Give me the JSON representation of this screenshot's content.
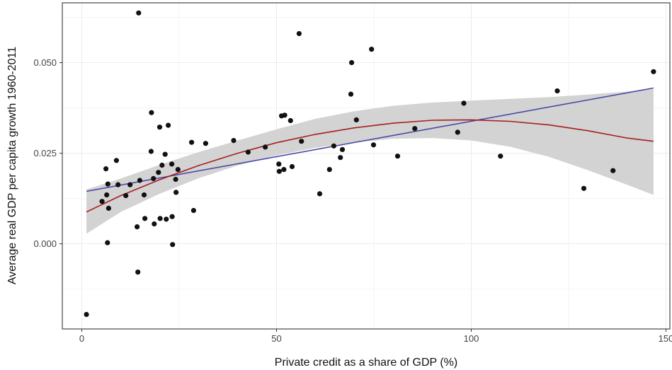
{
  "chart_data": {
    "type": "scatter",
    "xlabel": "Private credit as a share of GDP (%)",
    "ylabel": "Average real GDP per capita growth 1960-2011",
    "xlim": [
      -5,
      151
    ],
    "ylim": [
      -0.0235,
      0.0665
    ],
    "x_ticks": [
      0,
      50,
      100,
      150
    ],
    "x_tick_labels": [
      "0",
      "50",
      "100",
      "150"
    ],
    "y_ticks": [
      0.0,
      0.025,
      0.05
    ],
    "y_tick_labels": [
      "0.000",
      "0.025",
      "0.050"
    ],
    "grid": true,
    "points": [
      {
        "x": 1.2,
        "y": -0.0195
      },
      {
        "x": 5.2,
        "y": 0.0117
      },
      {
        "x": 6.2,
        "y": 0.0207
      },
      {
        "x": 6.4,
        "y": 0.0135
      },
      {
        "x": 6.6,
        "y": 0.0003
      },
      {
        "x": 6.7,
        "y": 0.0165
      },
      {
        "x": 6.9,
        "y": 0.0098
      },
      {
        "x": 8.9,
        "y": 0.023
      },
      {
        "x": 9.3,
        "y": 0.0163
      },
      {
        "x": 11.3,
        "y": 0.0133
      },
      {
        "x": 12.4,
        "y": 0.0163
      },
      {
        "x": 14.2,
        "y": 0.0047
      },
      {
        "x": 14.4,
        "y": -0.0078
      },
      {
        "x": 14.6,
        "y": 0.0637
      },
      {
        "x": 14.9,
        "y": 0.0175
      },
      {
        "x": 16.0,
        "y": 0.0135
      },
      {
        "x": 16.2,
        "y": 0.007
      },
      {
        "x": 17.8,
        "y": 0.0255
      },
      {
        "x": 17.9,
        "y": 0.0362
      },
      {
        "x": 18.4,
        "y": 0.018
      },
      {
        "x": 18.6,
        "y": 0.0055
      },
      {
        "x": 19.7,
        "y": 0.0197
      },
      {
        "x": 20.0,
        "y": 0.0322
      },
      {
        "x": 20.1,
        "y": 0.007
      },
      {
        "x": 20.6,
        "y": 0.0217
      },
      {
        "x": 21.4,
        "y": 0.0247
      },
      {
        "x": 21.7,
        "y": 0.0068
      },
      {
        "x": 22.2,
        "y": 0.0327
      },
      {
        "x": 23.1,
        "y": 0.022
      },
      {
        "x": 23.2,
        "y": 0.0075
      },
      {
        "x": 23.3,
        "y": -0.0002
      },
      {
        "x": 24.1,
        "y": 0.0178
      },
      {
        "x": 24.2,
        "y": 0.0142
      },
      {
        "x": 24.7,
        "y": 0.0205
      },
      {
        "x": 28.2,
        "y": 0.028
      },
      {
        "x": 28.7,
        "y": 0.0092
      },
      {
        "x": 31.8,
        "y": 0.0277
      },
      {
        "x": 39.0,
        "y": 0.0285
      },
      {
        "x": 42.7,
        "y": 0.0253
      },
      {
        "x": 47.1,
        "y": 0.0267
      },
      {
        "x": 50.6,
        "y": 0.022
      },
      {
        "x": 50.7,
        "y": 0.02
      },
      {
        "x": 51.3,
        "y": 0.0353
      },
      {
        "x": 51.9,
        "y": 0.0205
      },
      {
        "x": 52.1,
        "y": 0.0355
      },
      {
        "x": 53.6,
        "y": 0.034
      },
      {
        "x": 54.0,
        "y": 0.0213
      },
      {
        "x": 55.8,
        "y": 0.058
      },
      {
        "x": 56.4,
        "y": 0.0283
      },
      {
        "x": 61.1,
        "y": 0.0138
      },
      {
        "x": 63.6,
        "y": 0.0205
      },
      {
        "x": 64.7,
        "y": 0.027
      },
      {
        "x": 66.4,
        "y": 0.0238
      },
      {
        "x": 66.9,
        "y": 0.026
      },
      {
        "x": 69.1,
        "y": 0.0413
      },
      {
        "x": 69.3,
        "y": 0.05
      },
      {
        "x": 70.5,
        "y": 0.0342
      },
      {
        "x": 74.4,
        "y": 0.0537
      },
      {
        "x": 74.9,
        "y": 0.0273
      },
      {
        "x": 81.1,
        "y": 0.0242
      },
      {
        "x": 85.5,
        "y": 0.0318
      },
      {
        "x": 96.5,
        "y": 0.0308
      },
      {
        "x": 98.1,
        "y": 0.0388
      },
      {
        "x": 107.5,
        "y": 0.0242
      },
      {
        "x": 122.1,
        "y": 0.0422
      },
      {
        "x": 128.9,
        "y": 0.0153
      },
      {
        "x": 136.4,
        "y": 0.0202
      },
      {
        "x": 146.8,
        "y": 0.0475
      }
    ],
    "linear_fit": [
      {
        "x": 1.2,
        "y": 0.0145
      },
      {
        "x": 146.8,
        "y": 0.043
      }
    ],
    "quadratic_fit": [
      {
        "x": 1.2,
        "y": 0.0088
      },
      {
        "x": 10,
        "y": 0.0133
      },
      {
        "x": 20,
        "y": 0.0177
      },
      {
        "x": 30,
        "y": 0.0216
      },
      {
        "x": 40,
        "y": 0.025
      },
      {
        "x": 50,
        "y": 0.0279
      },
      {
        "x": 60,
        "y": 0.0302
      },
      {
        "x": 70,
        "y": 0.032
      },
      {
        "x": 80,
        "y": 0.0333
      },
      {
        "x": 90,
        "y": 0.0341
      },
      {
        "x": 100,
        "y": 0.0342
      },
      {
        "x": 110,
        "y": 0.0338
      },
      {
        "x": 120,
        "y": 0.0328
      },
      {
        "x": 130,
        "y": 0.0312
      },
      {
        "x": 140,
        "y": 0.0292
      },
      {
        "x": 146.8,
        "y": 0.0283
      }
    ],
    "confidence_band": {
      "upper": [
        {
          "x": 1.2,
          "y": 0.015
        },
        {
          "x": 10,
          "y": 0.018
        },
        {
          "x": 20,
          "y": 0.0218
        },
        {
          "x": 30,
          "y": 0.0253
        },
        {
          "x": 40,
          "y": 0.0285
        },
        {
          "x": 50,
          "y": 0.0316
        },
        {
          "x": 60,
          "y": 0.0345
        },
        {
          "x": 70,
          "y": 0.0366
        },
        {
          "x": 80,
          "y": 0.0381
        },
        {
          "x": 90,
          "y": 0.039
        },
        {
          "x": 100,
          "y": 0.0395
        },
        {
          "x": 110,
          "y": 0.04
        },
        {
          "x": 120,
          "y": 0.0405
        },
        {
          "x": 130,
          "y": 0.0412
        },
        {
          "x": 140,
          "y": 0.042
        },
        {
          "x": 146.8,
          "y": 0.0427
        }
      ],
      "lower": [
        {
          "x": 1.2,
          "y": 0.0028
        },
        {
          "x": 10,
          "y": 0.0088
        },
        {
          "x": 20,
          "y": 0.0138
        },
        {
          "x": 30,
          "y": 0.0181
        },
        {
          "x": 40,
          "y": 0.0216
        },
        {
          "x": 50,
          "y": 0.0244
        },
        {
          "x": 60,
          "y": 0.0265
        },
        {
          "x": 70,
          "y": 0.028
        },
        {
          "x": 80,
          "y": 0.029
        },
        {
          "x": 90,
          "y": 0.0292
        },
        {
          "x": 100,
          "y": 0.0285
        },
        {
          "x": 110,
          "y": 0.0268
        },
        {
          "x": 120,
          "y": 0.024
        },
        {
          "x": 130,
          "y": 0.0203
        },
        {
          "x": 140,
          "y": 0.0163
        },
        {
          "x": 146.8,
          "y": 0.0135
        }
      ]
    },
    "colors": {
      "points": "#111111",
      "linear_fit": "#4a4aa8",
      "quadratic_fit": "#a51f1f",
      "band": "#d3d3d3",
      "grid": "#ececec",
      "panel_border": "#222222"
    }
  }
}
